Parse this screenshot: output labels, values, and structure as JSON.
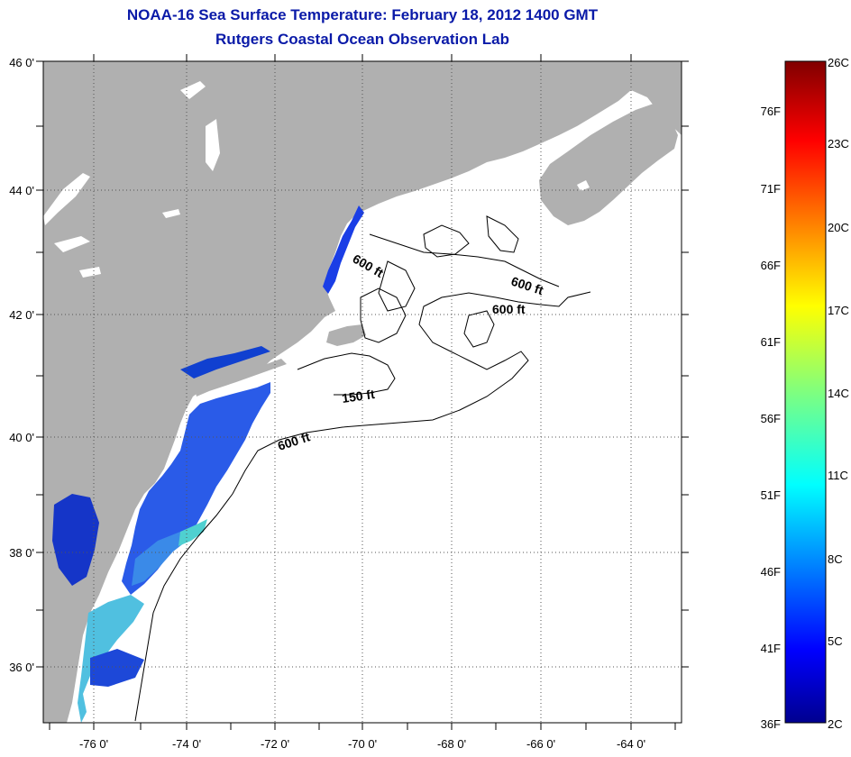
{
  "title": "NOAA-16 Sea Surface Temperature:  February 18, 2012 1400 GMT",
  "subtitle": "Rutgers Coastal Ocean Observation Lab",
  "map": {
    "lat_labels": [
      "46 0'",
      "44 0'",
      "42 0'",
      "40 0'",
      "38 0'",
      "36 0'"
    ],
    "lon_labels": [
      "-76 0'",
      "-74 0'",
      "-72 0'",
      "-70 0'",
      "-68 0'",
      "-66 0'",
      "-64 0'"
    ],
    "contour_labels": [
      "600 ft",
      "600 ft",
      "600 ft",
      "150 ft",
      "600 ft"
    ],
    "colors": {
      "land": "#b0b0b0",
      "ocean_nodata": "#ffffff",
      "grid": "#555555"
    }
  },
  "colorbar": {
    "celsius_labels": [
      "26C",
      "23C",
      "20C",
      "17C",
      "14C",
      "11C",
      "8C",
      "5C",
      "2C"
    ],
    "fahrenheit_labels": [
      "76F",
      "71F",
      "66F",
      "61F",
      "56F",
      "51F",
      "46F",
      "41F",
      "36F"
    ]
  }
}
